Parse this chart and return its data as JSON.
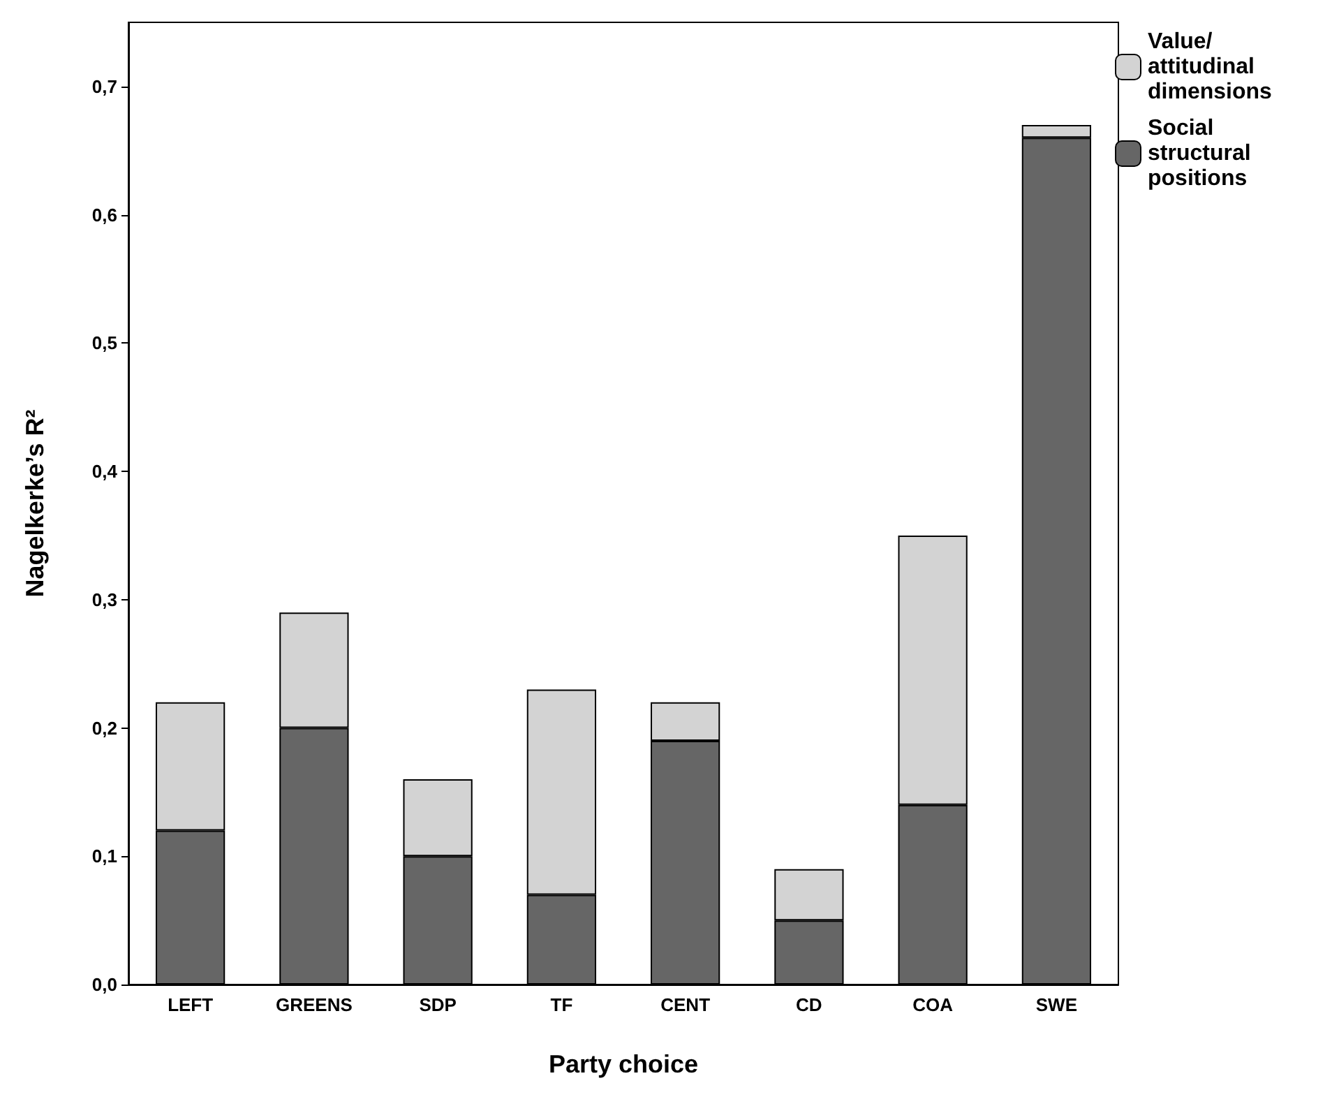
{
  "chart_data": {
    "type": "bar",
    "stacked": true,
    "xlabel": "Party choice",
    "ylabel": "Nagelkerke’s R²",
    "categories": [
      "LEFT",
      "GREENS",
      "SDP",
      "TF",
      "CENT",
      "CD",
      "COA",
      "SWE"
    ],
    "series": [
      {
        "name": "Social structural positions",
        "color": "#666666",
        "values": [
          0.12,
          0.2,
          0.1,
          0.07,
          0.19,
          0.05,
          0.14,
          0.66
        ]
      },
      {
        "name": "Value/attitudinal dimensions",
        "color": "#d3d3d3",
        "values": [
          0.1,
          0.09,
          0.06,
          0.16,
          0.03,
          0.04,
          0.21,
          0.01
        ]
      }
    ],
    "ylim": [
      0,
      0.75
    ],
    "yticks": [
      {
        "value": 0,
        "label": "0,0"
      },
      {
        "value": 0.1,
        "label": "0,1"
      },
      {
        "value": 0.2,
        "label": "0,2"
      },
      {
        "value": 0.3,
        "label": "0,3"
      },
      {
        "value": 0.4,
        "label": "0,4"
      },
      {
        "value": 0.5,
        "label": "0,5"
      },
      {
        "value": 0.6,
        "label": "0,6"
      },
      {
        "value": 0.7,
        "label": "0,7"
      }
    ],
    "grid": false,
    "legend": "top right"
  }
}
